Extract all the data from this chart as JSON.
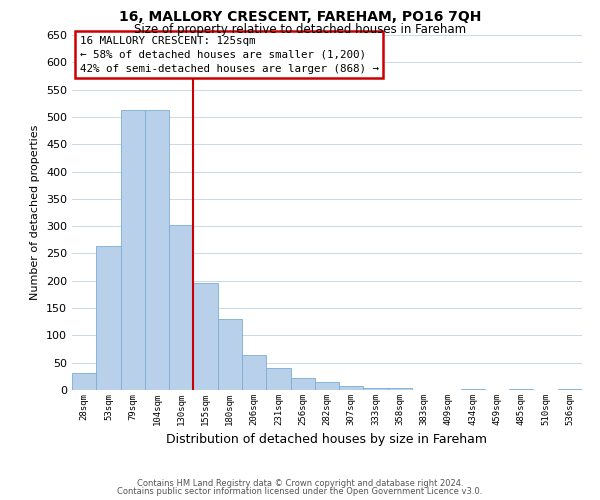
{
  "title": "16, MALLORY CRESCENT, FAREHAM, PO16 7QH",
  "subtitle": "Size of property relative to detached houses in Fareham",
  "xlabel": "Distribution of detached houses by size in Fareham",
  "ylabel": "Number of detached properties",
  "categories": [
    "28sqm",
    "53sqm",
    "79sqm",
    "104sqm",
    "130sqm",
    "155sqm",
    "180sqm",
    "206sqm",
    "231sqm",
    "256sqm",
    "282sqm",
    "307sqm",
    "333sqm",
    "358sqm",
    "383sqm",
    "409sqm",
    "434sqm",
    "459sqm",
    "485sqm",
    "510sqm",
    "536sqm"
  ],
  "values": [
    32,
    263,
    512,
    512,
    303,
    196,
    130,
    64,
    40,
    22,
    15,
    8,
    3,
    3,
    0,
    0,
    1,
    0,
    2,
    0,
    1
  ],
  "bar_color": "#b8d0ea",
  "bar_edge_color": "#7aadd4",
  "highlight_index": 4,
  "highlight_color": "#cc0000",
  "ylim": [
    0,
    650
  ],
  "yticks": [
    0,
    50,
    100,
    150,
    200,
    250,
    300,
    350,
    400,
    450,
    500,
    550,
    600,
    650
  ],
  "annotation_title": "16 MALLORY CRESCENT: 125sqm",
  "annotation_line1": "← 58% of detached houses are smaller (1,200)",
  "annotation_line2": "42% of semi-detached houses are larger (868) →",
  "annotation_box_color": "#ffffff",
  "annotation_box_edge": "#cc0000",
  "footer_line1": "Contains HM Land Registry data © Crown copyright and database right 2024.",
  "footer_line2": "Contains public sector information licensed under the Open Government Licence v3.0.",
  "background_color": "#ffffff",
  "grid_color": "#c8d8ec"
}
